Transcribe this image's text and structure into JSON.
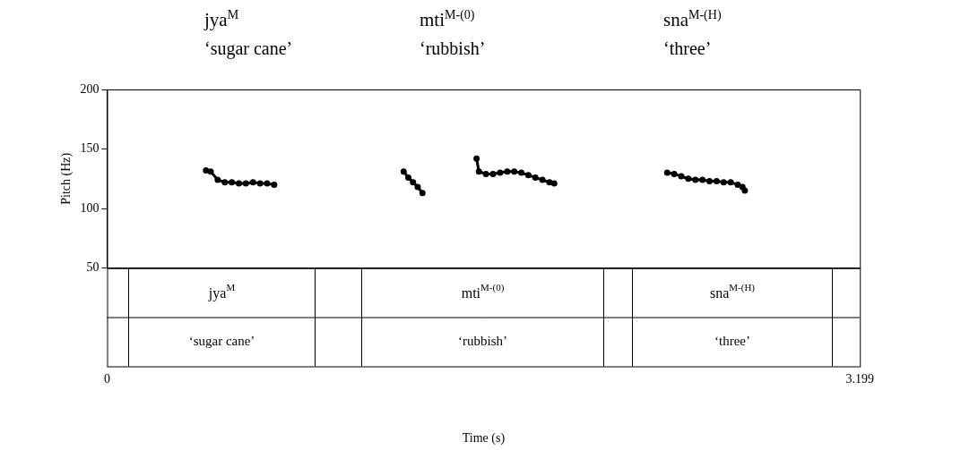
{
  "chart_data": {
    "type": "line",
    "x_label": "Time (s)",
    "y_label": "Pitch (Hz)",
    "xlim": [
      0,
      3.199
    ],
    "xticks": [
      0,
      3.199
    ],
    "ylim": [
      50,
      200
    ],
    "yticks": [
      50,
      100,
      150,
      200
    ],
    "grid": false,
    "marker": "circle",
    "color": "#000000",
    "series": [
      {
        "x": [
          0.42,
          0.44,
          0.47,
          0.5,
          0.53,
          0.56,
          0.59,
          0.62,
          0.65,
          0.68,
          0.71
        ],
        "values": [
          132,
          131,
          124,
          122,
          122,
          121,
          121,
          122,
          121,
          121,
          120
        ]
      },
      {
        "x": [
          1.26,
          1.28,
          1.3,
          1.32,
          1.34
        ],
        "values": [
          131,
          126,
          122,
          118,
          113
        ]
      },
      {
        "x": [
          1.57,
          1.58,
          1.61,
          1.64,
          1.67,
          1.7,
          1.73,
          1.76,
          1.79,
          1.82,
          1.85,
          1.88,
          1.9
        ],
        "values": [
          142,
          131,
          129,
          129,
          130,
          131,
          131,
          130,
          128,
          126,
          124,
          122,
          121
        ]
      },
      {
        "x": [
          2.38,
          2.41,
          2.44,
          2.47,
          2.5,
          2.53,
          2.56,
          2.59,
          2.62,
          2.65,
          2.68,
          2.7,
          2.71
        ],
        "values": [
          130,
          129,
          127,
          125,
          124,
          124,
          123,
          123,
          122,
          122,
          120,
          118,
          115
        ]
      }
    ],
    "words": [
      {
        "text": "jya",
        "tone": "M",
        "gloss": "‘sugar cane’",
        "start": 0.09,
        "end": 0.88
      },
      {
        "text": "mti",
        "tone": "M-(0)",
        "gloss": "‘rubbish’",
        "start": 1.08,
        "end": 2.11
      },
      {
        "text": "sna",
        "tone": "M-(H)",
        "gloss": "‘three’",
        "start": 2.23,
        "end": 3.08
      }
    ]
  }
}
